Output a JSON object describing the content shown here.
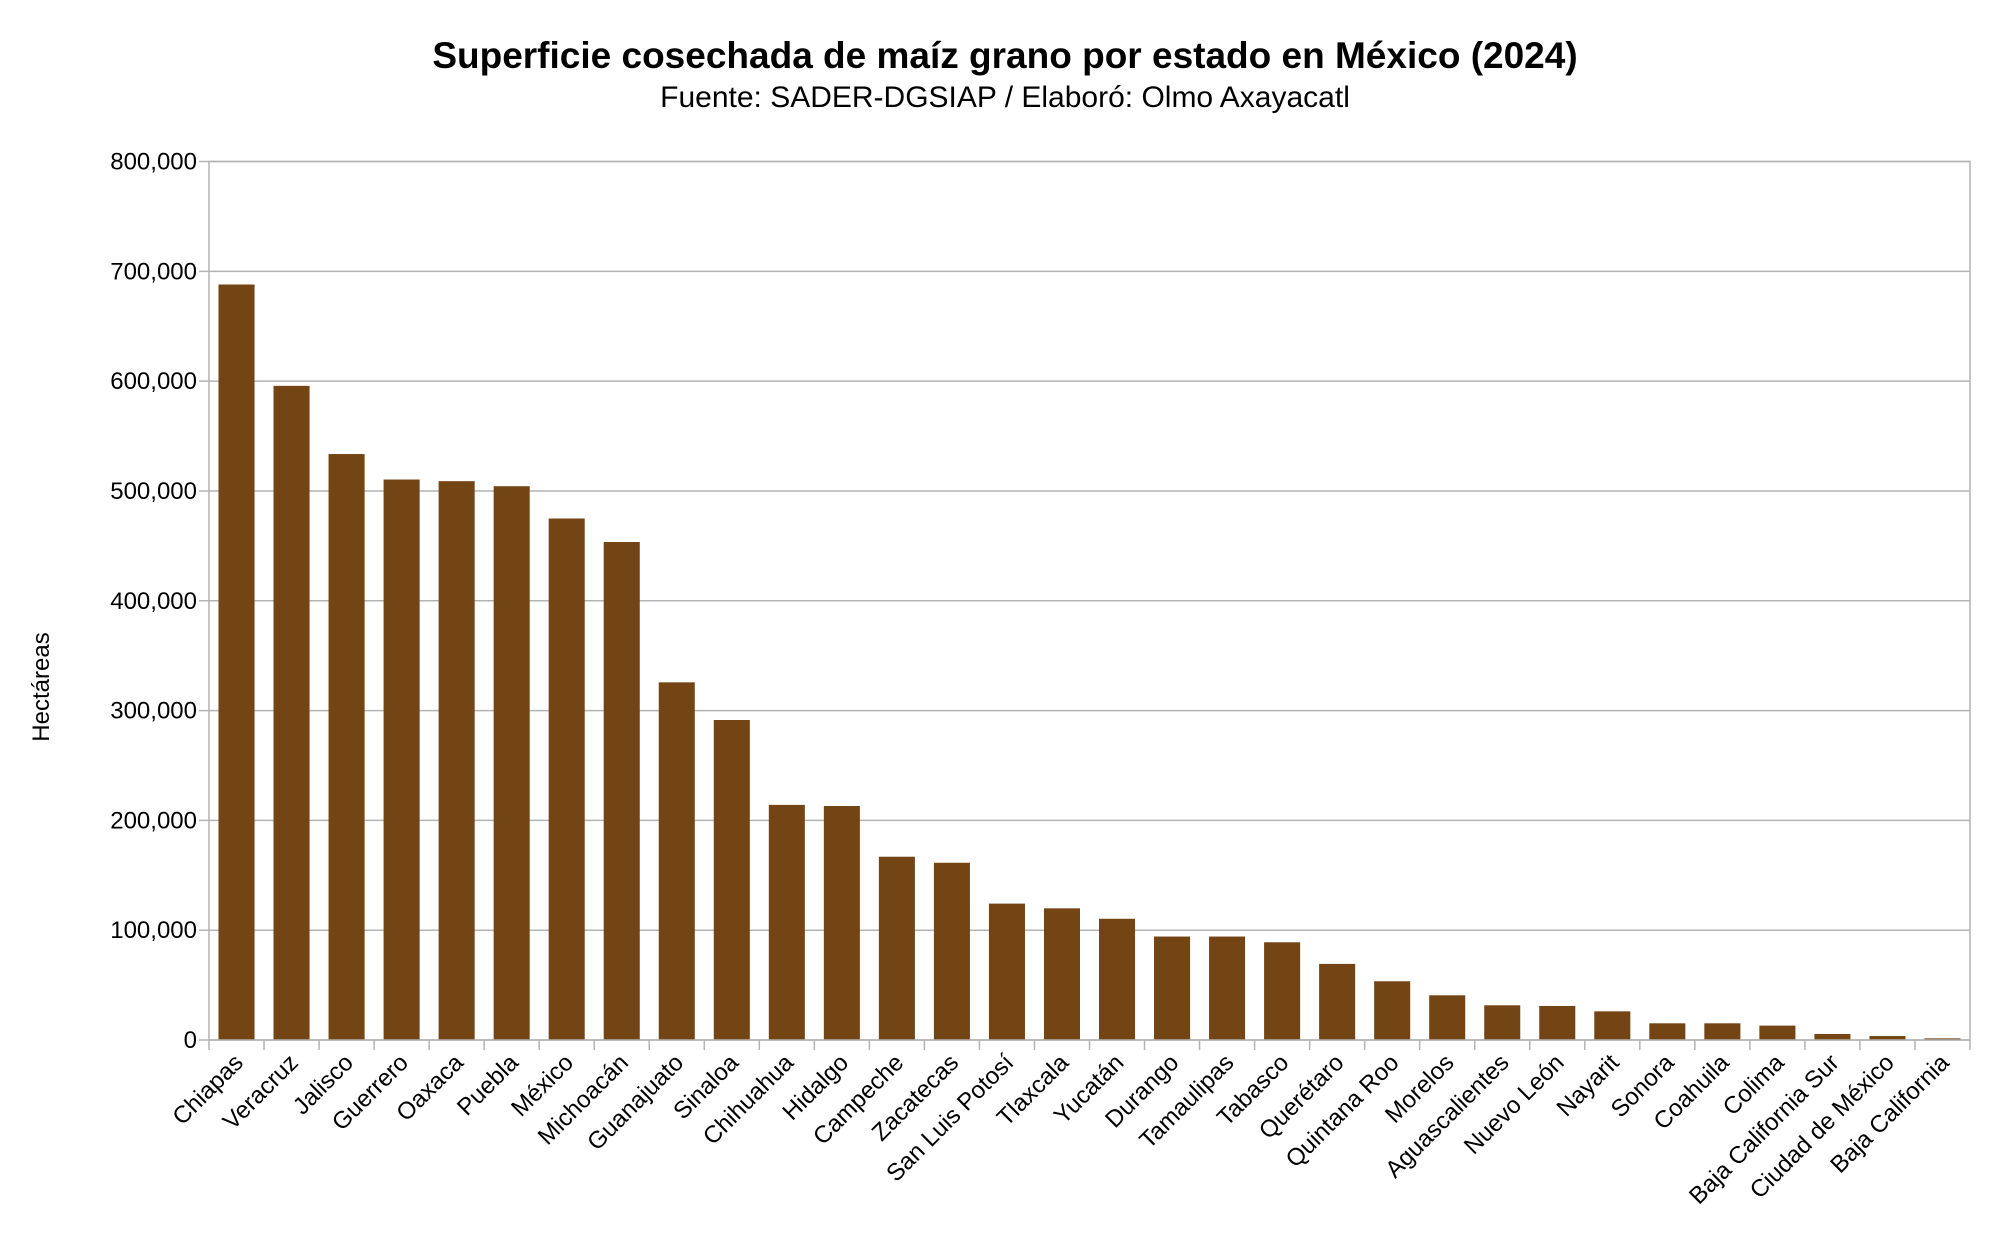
{
  "chart_data": {
    "type": "bar",
    "title": "Superficie cosechada de maíz grano por estado en México (2024)",
    "subtitle": "Fuente: SADER-DGSIAP / Elaboró: Olmo Axayacatl",
    "xlabel": "",
    "ylabel": "Hectáreas",
    "ylim": [
      0,
      800000
    ],
    "yticks": [
      0,
      100000,
      200000,
      300000,
      400000,
      500000,
      600000,
      700000,
      800000
    ],
    "ytick_labels": [
      "0",
      "100,000",
      "200,000",
      "300,000",
      "400,000",
      "500,000",
      "600,000",
      "700,000",
      "800,000"
    ],
    "grid": true,
    "bar_color": "#734414",
    "categories": [
      "Chiapas",
      "Veracruz",
      "Jalisco",
      "Guerrero",
      "Oaxaca",
      "Puebla",
      "México",
      "Michoacán",
      "Guanajuato",
      "Sinaloa",
      "Chihuahua",
      "Hidalgo",
      "Campeche",
      "Zacatecas",
      "San Luis Potosí",
      "Tlaxcala",
      "Yucatán",
      "Durango",
      "Tamaulipas",
      "Tabasco",
      "Querétaro",
      "Quintana Roo",
      "Morelos",
      "Aguascalientes",
      "Nuevo León",
      "Nayarit",
      "Sonora",
      "Coahuila",
      "Colima",
      "Baja California Sur",
      "Ciudad de México",
      "Baja California"
    ],
    "values": [
      688000,
      595700,
      533600,
      510400,
      508900,
      504300,
      474900,
      453500,
      325700,
      291400,
      214100,
      213100,
      166900,
      161400,
      124200,
      119900,
      110400,
      94200,
      94200,
      89000,
      69300,
      53500,
      40700,
      31600,
      31000,
      26100,
      15200,
      15200,
      13100,
      5500,
      3600,
      1500
    ]
  }
}
